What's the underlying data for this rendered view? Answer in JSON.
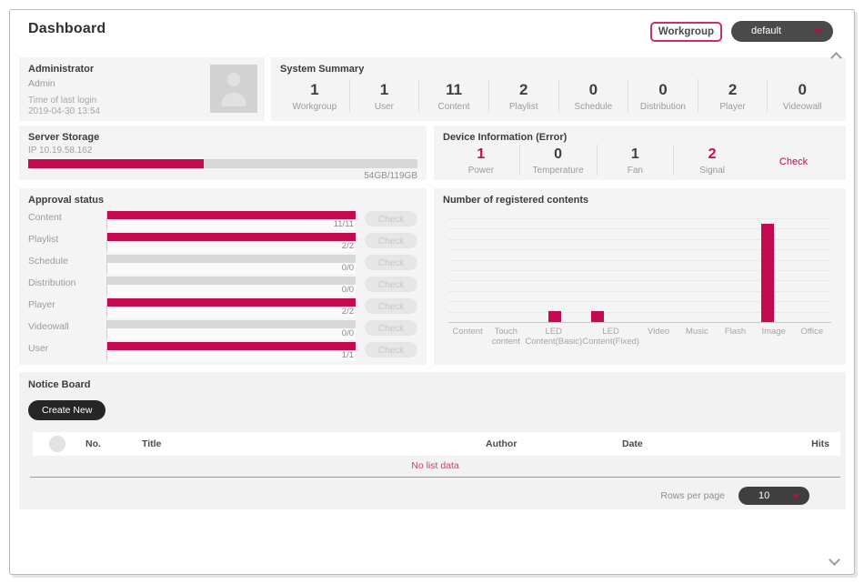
{
  "page": {
    "title": "Dashboard"
  },
  "header": {
    "workgroup_label": "Workgroup",
    "workgroup_selected": "default"
  },
  "admin_card": {
    "title": "Administrator",
    "username": "Admin",
    "last_login_label": "Time of last login",
    "last_login_value": "2019-04-30 13:54"
  },
  "system_summary": {
    "title": "System Summary",
    "stats": [
      {
        "value": "1",
        "label": "Workgroup"
      },
      {
        "value": "1",
        "label": "User"
      },
      {
        "value": "11",
        "label": "Content"
      },
      {
        "value": "2",
        "label": "Playlist"
      },
      {
        "value": "0",
        "label": "Schedule"
      },
      {
        "value": "0",
        "label": "Distribution"
      },
      {
        "value": "2",
        "label": "Player"
      },
      {
        "value": "0",
        "label": "Videowall"
      }
    ]
  },
  "server_storage": {
    "title": "Server Storage",
    "ip": "IP 10.19.58.162",
    "usage_text": "54GB/119GB",
    "used_percent": 45
  },
  "device_info": {
    "title": "Device Information (Error)",
    "stats": [
      {
        "value": "1",
        "label": "Power",
        "alert": true
      },
      {
        "value": "0",
        "label": "Temperature",
        "alert": false
      },
      {
        "value": "1",
        "label": "Fan",
        "alert": false
      },
      {
        "value": "2",
        "label": "Signal",
        "alert": true
      }
    ],
    "check_label": "Check"
  },
  "approval": {
    "title": "Approval status",
    "check_label": "Check",
    "rows": [
      {
        "label": "Content",
        "value": "11/11",
        "filled": true
      },
      {
        "label": "Playlist",
        "value": "2/2",
        "filled": true
      },
      {
        "label": "Schedule",
        "value": "0/0",
        "filled": false
      },
      {
        "label": "Distribution",
        "value": "0/0",
        "filled": false
      },
      {
        "label": "Player",
        "value": "2/2",
        "filled": true
      },
      {
        "label": "Videowall",
        "value": "0/0",
        "filled": false
      },
      {
        "label": "User",
        "value": "1/1",
        "filled": true
      }
    ]
  },
  "chart_data": {
    "type": "bar",
    "title": "Number of registered contents",
    "categories": [
      "Content",
      "Touch content",
      "LED Content(Basic)",
      "LED Content(Fixed)",
      "Video",
      "Music",
      "Flash",
      "Image",
      "Office"
    ],
    "values": [
      0,
      0,
      1,
      1,
      0,
      0,
      0,
      9,
      0
    ],
    "xlabel": "",
    "ylabel": "",
    "ylim": [
      0,
      9.5
    ],
    "grid": true,
    "legend": false,
    "bar_color": "#c60a51"
  },
  "notice_board": {
    "title": "Notice Board",
    "create_button_label": "Create New",
    "columns": [
      "No.",
      "Title",
      "Author",
      "Date",
      "Hits"
    ],
    "empty_text": "No list data",
    "rows_per_page_label": "Rows per page",
    "rows_per_page_value": "10"
  },
  "colors": {
    "accent": "#c60a51",
    "dark_text": "#3c3c3c",
    "muted_text": "#9b9b9b",
    "card_bg": "#f4f4f4",
    "pill_dark": "#3f3f3f"
  }
}
